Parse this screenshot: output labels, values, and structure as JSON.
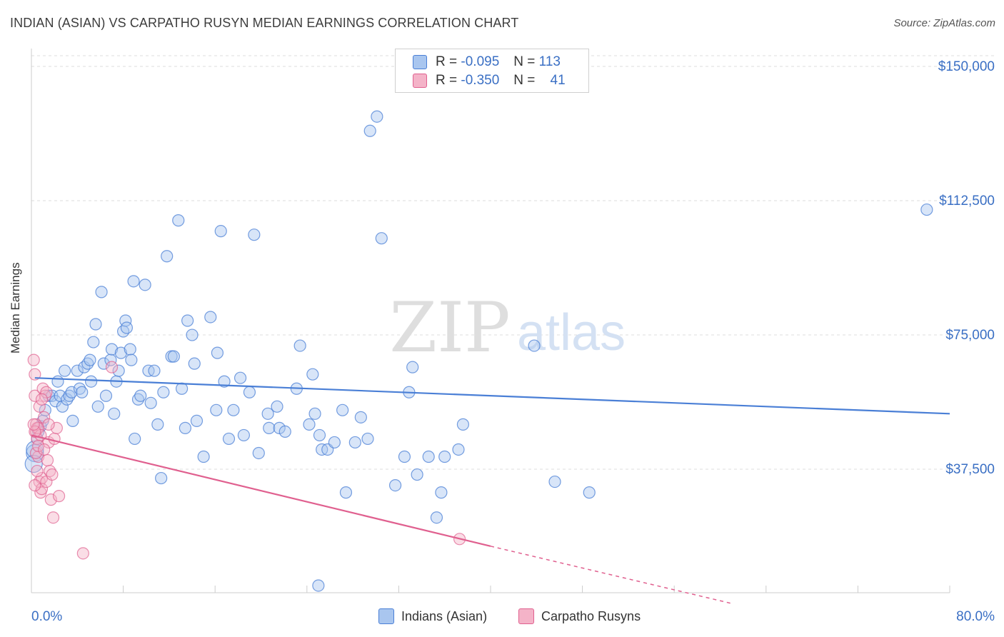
{
  "title": "INDIAN (ASIAN) VS CARPATHO RUSYN MEDIAN EARNINGS CORRELATION CHART",
  "source": "Source: ZipAtlas.com",
  "watermark": {
    "zip": "ZIP",
    "atlas": "atlas"
  },
  "colors": {
    "blue": "#4a7fd6",
    "blue_fill": "#a9c6ef",
    "pink": "#e0608f",
    "pink_fill": "#f4b3c8",
    "axis_label": "#3a6fc4"
  },
  "legend": {
    "rows": [
      {
        "r_label": "R =",
        "r_value": "-0.095",
        "n_label": "N =",
        "n_value": "113"
      },
      {
        "r_label": "R =",
        "r_value": "-0.350",
        "n_label": "N =",
        "n_value": "41"
      }
    ]
  },
  "bottom_legend": {
    "series1": "Indians (Asian)",
    "series2": "Carpatho Rusyns"
  },
  "chart_data": {
    "type": "scatter",
    "xlabel": "",
    "ylabel": "Median Earnings",
    "xlim": [
      0,
      80
    ],
    "ylim": [
      3000,
      153000
    ],
    "x_tick_labels": [
      "0.0%",
      "80.0%"
    ],
    "y_tick_labels": [
      "$150,000",
      "$112,500",
      "$75,000",
      "$37,500"
    ],
    "y_tick_values": [
      150000,
      112500,
      75000,
      37500
    ],
    "series": [
      {
        "name": "Indians (Asian)",
        "trend": {
          "x0": 0.3,
          "y0": 63000,
          "x1": 80,
          "y1": 53000
        },
        "points": [
          [
            0.3,
            42000
          ],
          [
            0.3,
            43000
          ],
          [
            0.5,
            46000
          ],
          [
            0.6,
            48000
          ],
          [
            0.8,
            49500
          ],
          [
            1.0,
            51000
          ],
          [
            1.2,
            54000
          ],
          [
            1.5,
            58000
          ],
          [
            1.8,
            58000
          ],
          [
            2.1,
            56500
          ],
          [
            2.3,
            62000
          ],
          [
            2.5,
            58000
          ],
          [
            2.7,
            55000
          ],
          [
            2.9,
            65000
          ],
          [
            3.1,
            57000
          ],
          [
            3.3,
            58000
          ],
          [
            3.5,
            59000
          ],
          [
            3.6,
            51000
          ],
          [
            4.0,
            65000
          ],
          [
            4.2,
            60000
          ],
          [
            4.4,
            59000
          ],
          [
            4.6,
            66000
          ],
          [
            4.9,
            67000
          ],
          [
            5.1,
            68000
          ],
          [
            5.2,
            62000
          ],
          [
            5.4,
            73000
          ],
          [
            5.6,
            78000
          ],
          [
            5.8,
            55000
          ],
          [
            6.1,
            87000
          ],
          [
            6.3,
            67000
          ],
          [
            6.5,
            58000
          ],
          [
            6.9,
            68000
          ],
          [
            7.0,
            71000
          ],
          [
            7.2,
            53000
          ],
          [
            7.4,
            62000
          ],
          [
            7.6,
            65000
          ],
          [
            7.8,
            70000
          ],
          [
            8.0,
            76000
          ],
          [
            8.2,
            79000
          ],
          [
            8.3,
            77000
          ],
          [
            8.6,
            71000
          ],
          [
            8.7,
            68000
          ],
          [
            8.9,
            90000
          ],
          [
            9.0,
            46000
          ],
          [
            9.3,
            57000
          ],
          [
            9.5,
            58000
          ],
          [
            9.9,
            89000
          ],
          [
            10.2,
            65000
          ],
          [
            10.4,
            56000
          ],
          [
            10.7,
            65000
          ],
          [
            11.0,
            50000
          ],
          [
            11.3,
            35000
          ],
          [
            11.5,
            59000
          ],
          [
            11.8,
            97000
          ],
          [
            12.2,
            69000
          ],
          [
            12.4,
            69000
          ],
          [
            12.8,
            107000
          ],
          [
            13.1,
            60000
          ],
          [
            13.4,
            49000
          ],
          [
            13.6,
            79000
          ],
          [
            14.0,
            75000
          ],
          [
            14.2,
            67000
          ],
          [
            14.4,
            51000
          ],
          [
            15.0,
            41000
          ],
          [
            15.6,
            80000
          ],
          [
            16.1,
            54000
          ],
          [
            16.2,
            70000
          ],
          [
            16.5,
            104000
          ],
          [
            16.8,
            62000
          ],
          [
            17.2,
            46000
          ],
          [
            17.6,
            54000
          ],
          [
            18.2,
            63000
          ],
          [
            18.5,
            47000
          ],
          [
            19.0,
            59000
          ],
          [
            19.4,
            103000
          ],
          [
            19.8,
            42000
          ],
          [
            20.6,
            53000
          ],
          [
            20.7,
            49000
          ],
          [
            21.4,
            55000
          ],
          [
            21.6,
            49000
          ],
          [
            22.1,
            48000
          ],
          [
            23.1,
            60000
          ],
          [
            23.4,
            72000
          ],
          [
            24.2,
            50000
          ],
          [
            24.5,
            64000
          ],
          [
            24.7,
            53000
          ],
          [
            25.1,
            47000
          ],
          [
            25.3,
            43000
          ],
          [
            25.8,
            43000
          ],
          [
            26.4,
            45000
          ],
          [
            27.1,
            54000
          ],
          [
            27.4,
            31000
          ],
          [
            28.2,
            45000
          ],
          [
            28.7,
            52000
          ],
          [
            29.3,
            46000
          ],
          [
            30.5,
            102000
          ],
          [
            31.7,
            33000
          ],
          [
            32.5,
            41000
          ],
          [
            32.9,
            59000
          ],
          [
            33.2,
            66000
          ],
          [
            33.6,
            36000
          ],
          [
            34.6,
            41000
          ],
          [
            35.3,
            24000
          ],
          [
            35.7,
            31000
          ],
          [
            36.0,
            41000
          ],
          [
            37.2,
            43000
          ],
          [
            37.6,
            50000
          ],
          [
            43.8,
            72000
          ],
          [
            45.6,
            34000
          ],
          [
            48.6,
            31000
          ],
          [
            78.0,
            110000
          ],
          [
            29.5,
            132000
          ],
          [
            30.1,
            136000
          ],
          [
            25.0,
            5000
          ],
          [
            0.2,
            39000
          ]
        ]
      },
      {
        "name": "Carpatho Rusyns",
        "trend": {
          "x0": 0,
          "y0": 47000,
          "x1": 40,
          "y1": 16000,
          "dash_to_x": 61,
          "dash_to_y": 0
        },
        "points": [
          [
            0.2,
            68000
          ],
          [
            0.3,
            64000
          ],
          [
            0.3,
            58000
          ],
          [
            0.4,
            50000
          ],
          [
            0.4,
            48000
          ],
          [
            0.5,
            49000
          ],
          [
            0.5,
            46000
          ],
          [
            0.6,
            49000
          ],
          [
            0.6,
            41000
          ],
          [
            0.7,
            55000
          ],
          [
            0.7,
            34000
          ],
          [
            0.8,
            31000
          ],
          [
            0.8,
            47000
          ],
          [
            0.9,
            35000
          ],
          [
            0.9,
            32000
          ],
          [
            1.0,
            60000
          ],
          [
            1.1,
            52000
          ],
          [
            1.2,
            58000
          ],
          [
            1.3,
            59000
          ],
          [
            1.3,
            34000
          ],
          [
            1.4,
            40000
          ],
          [
            1.5,
            45000
          ],
          [
            1.6,
            37000
          ],
          [
            1.7,
            29000
          ],
          [
            1.8,
            36000
          ],
          [
            1.9,
            24000
          ],
          [
            2.0,
            46000
          ],
          [
            2.2,
            49000
          ],
          [
            2.4,
            30000
          ],
          [
            4.5,
            14000
          ],
          [
            7.0,
            66000
          ],
          [
            37.3,
            18000
          ],
          [
            0.3,
            48000
          ],
          [
            0.4,
            42000
          ],
          [
            0.5,
            37000
          ],
          [
            0.2,
            50000
          ],
          [
            0.6,
            44000
          ],
          [
            0.9,
            57000
          ],
          [
            1.1,
            43000
          ],
          [
            0.3,
            33000
          ],
          [
            1.5,
            50000
          ]
        ]
      }
    ]
  }
}
